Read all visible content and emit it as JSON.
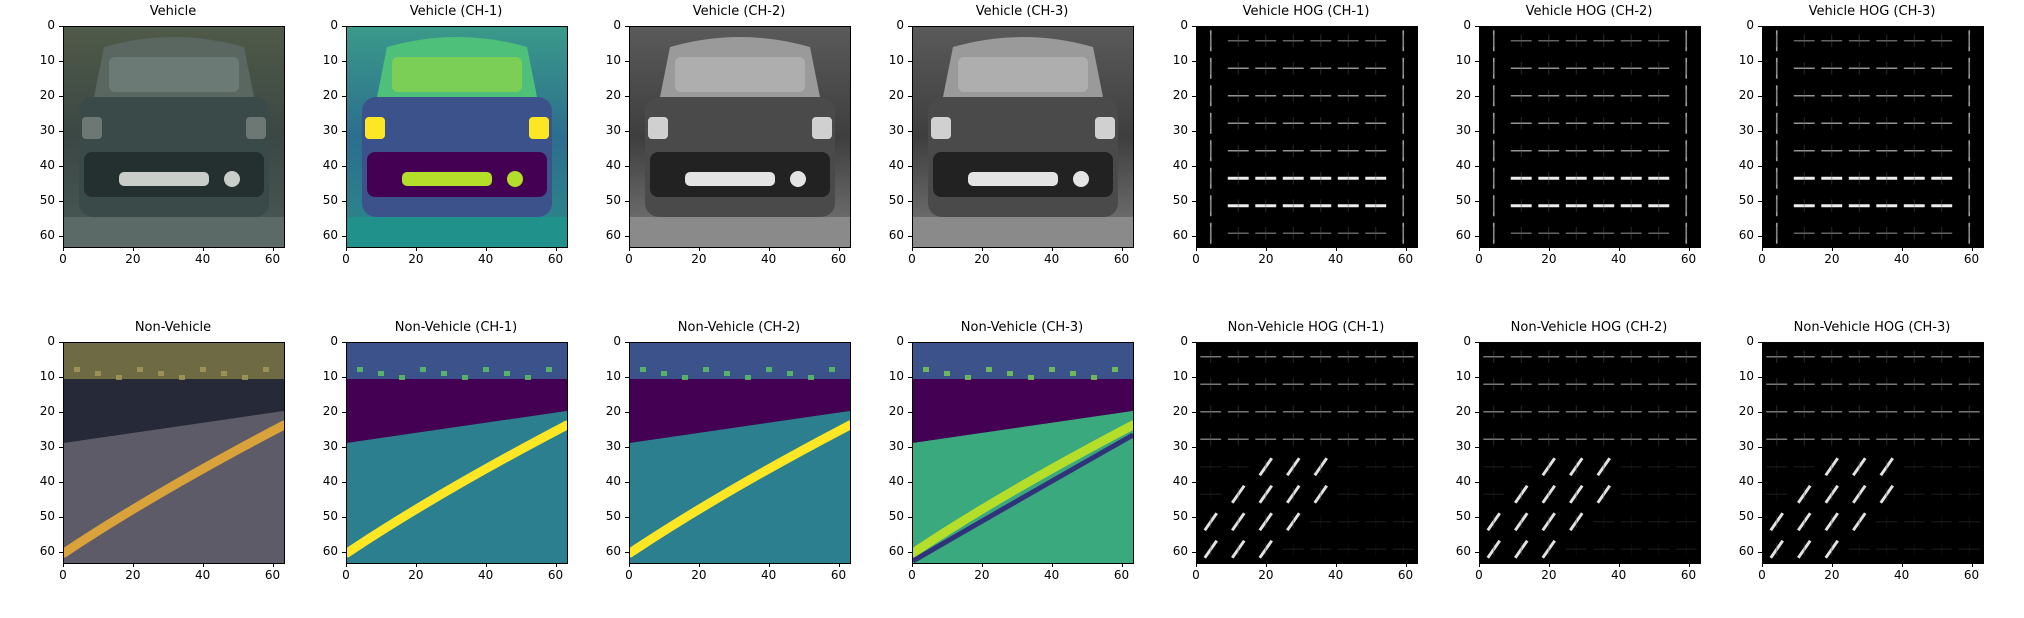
{
  "axes": {
    "ticks": [
      "0",
      "10",
      "20",
      "30",
      "40",
      "50",
      "60"
    ],
    "xticks": [
      "0",
      "20",
      "40",
      "60"
    ]
  },
  "rows": [
    {
      "panels": [
        {
          "title": "Vehicle",
          "kind": "photo-car"
        },
        {
          "title": "Vehicle (CH-1)",
          "kind": "viridis-car"
        },
        {
          "title": "Vehicle (CH-2)",
          "kind": "gray-car"
        },
        {
          "title": "Vehicle (CH-3)",
          "kind": "gray-car"
        },
        {
          "title": "Vehicle HOG (CH-1)",
          "kind": "hog-car"
        },
        {
          "title": "Vehicle HOG (CH-2)",
          "kind": "hog-car"
        },
        {
          "title": "Vehicle HOG (CH-3)",
          "kind": "hog-car"
        }
      ]
    },
    {
      "panels": [
        {
          "title": "Non-Vehicle",
          "kind": "photo-road"
        },
        {
          "title": "Non-Vehicle (CH-1)",
          "kind": "viridis-road"
        },
        {
          "title": "Non-Vehicle (CH-2)",
          "kind": "viridis-road"
        },
        {
          "title": "Non-Vehicle (CH-3)",
          "kind": "viridis-road2"
        },
        {
          "title": "Non-Vehicle HOG (CH-1)",
          "kind": "hog-road"
        },
        {
          "title": "Non-Vehicle HOG (CH-2)",
          "kind": "hog-road"
        },
        {
          "title": "Non-Vehicle HOG (CH-3)",
          "kind": "hog-road"
        }
      ]
    }
  ],
  "colors": {
    "viridis_dark": "#440154",
    "viridis_mid": "#21918c",
    "viridis_bright": "#fde725",
    "road_gray": "#5d5b68",
    "lane_yellow": "#d9a23a"
  }
}
